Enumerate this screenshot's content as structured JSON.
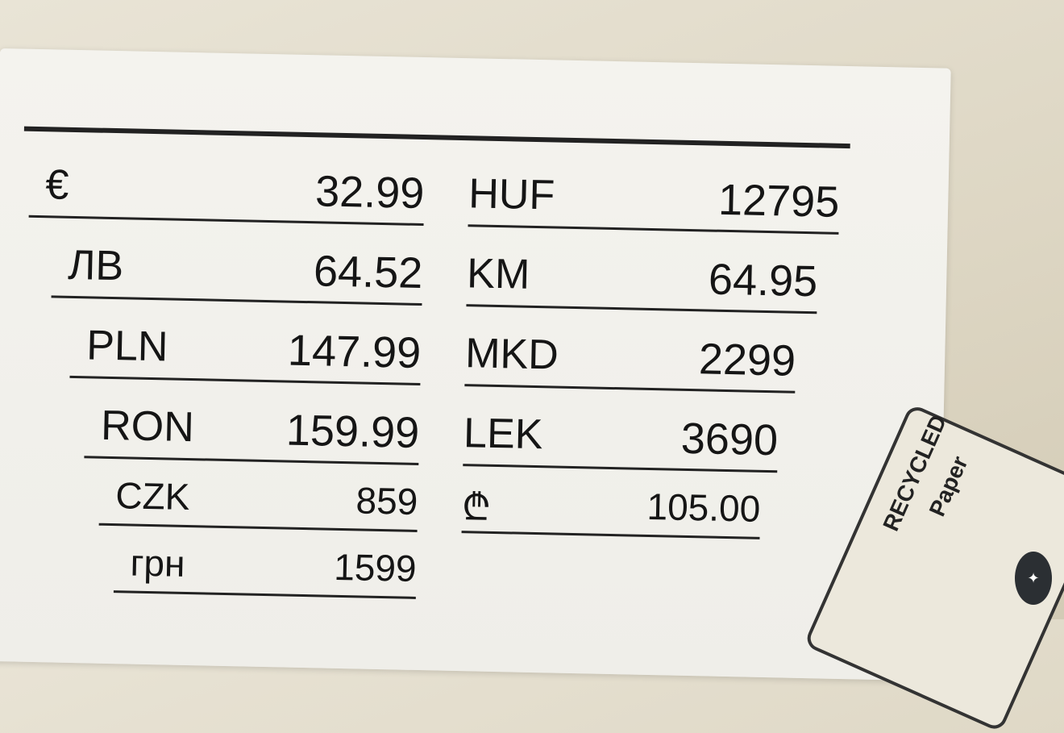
{
  "price_tag": {
    "left": [
      {
        "currency": "€",
        "price": "32.99"
      },
      {
        "currency": "ЛВ",
        "price": "64.52"
      },
      {
        "currency": "PLN",
        "price": "147.99"
      },
      {
        "currency": "RON",
        "price": "159.99"
      },
      {
        "currency": "CZK",
        "price": "859"
      },
      {
        "currency": "грн",
        "price": "1599"
      }
    ],
    "right": [
      {
        "currency": "HUF",
        "price": "12795"
      },
      {
        "currency": "KM",
        "price": "64.95"
      },
      {
        "currency": "MKD",
        "price": "2299"
      },
      {
        "currency": "LEK",
        "price": "3690"
      },
      {
        "currency": "₾",
        "price": "105.00"
      }
    ]
  },
  "recycled_label": {
    "line1": "RECYCLED",
    "line2": "Paper"
  },
  "watermark_icon": "sparkle-logo"
}
